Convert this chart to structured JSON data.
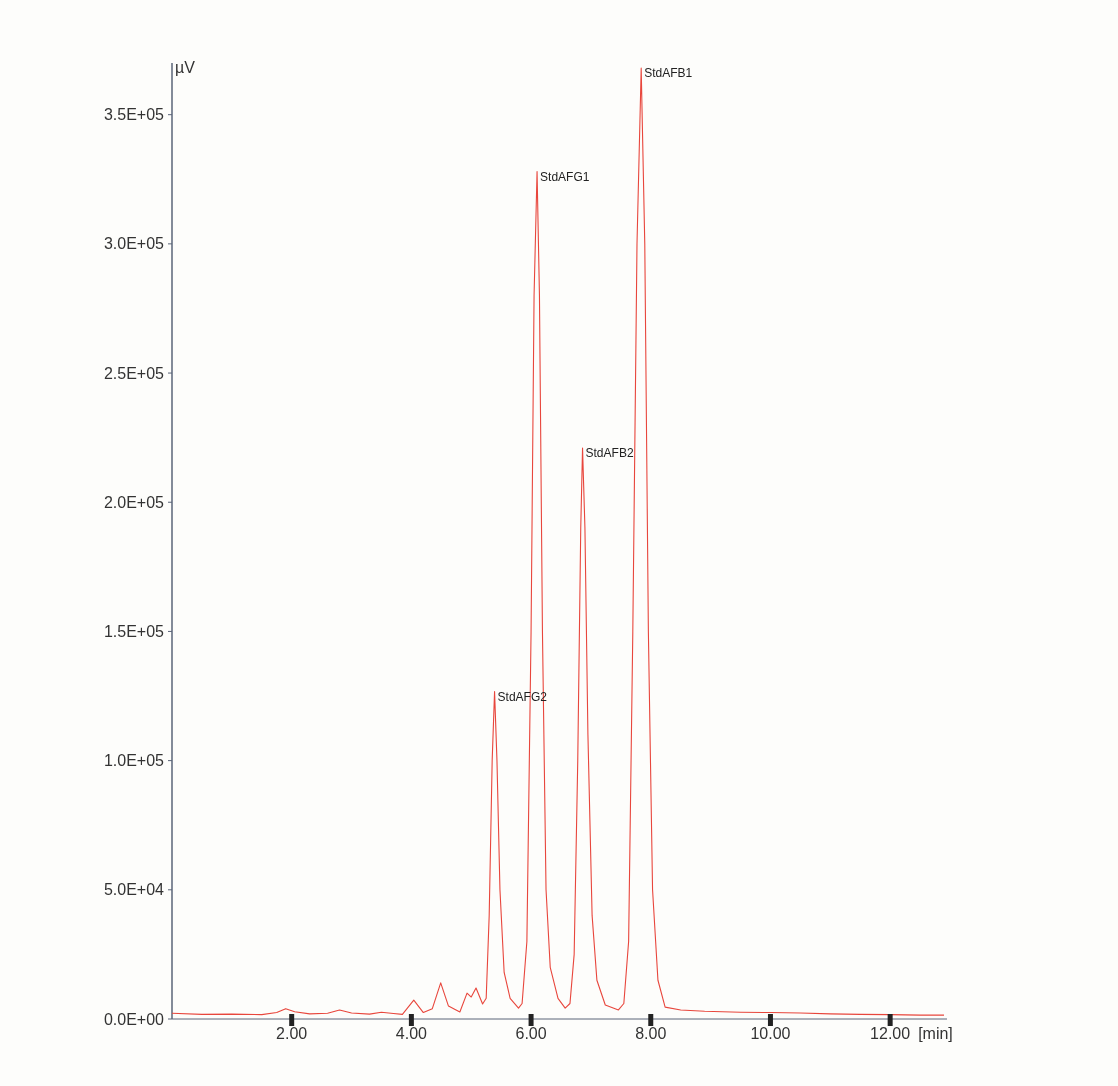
{
  "chart_data": {
    "type": "line",
    "xlabel": "[min]",
    "ylabel": "µV",
    "x": [
      0,
      0.5,
      1.0,
      1.5,
      1.75,
      1.9,
      2.05,
      2.3,
      2.6,
      2.8,
      3.0,
      3.3,
      3.5,
      3.7,
      3.85,
      4.04,
      4.2,
      4.35,
      4.49,
      4.62,
      4.81,
      4.93,
      5.0,
      5.08,
      5.19,
      5.25,
      5.3,
      5.35,
      5.39,
      5.43,
      5.48,
      5.55,
      5.65,
      5.79,
      5.85,
      5.93,
      6.0,
      6.05,
      6.1,
      6.14,
      6.19,
      6.25,
      6.32,
      6.45,
      6.57,
      6.65,
      6.72,
      6.78,
      6.83,
      6.86,
      6.9,
      6.95,
      7.02,
      7.1,
      7.24,
      7.46,
      7.55,
      7.63,
      7.7,
      7.77,
      7.84,
      7.9,
      7.96,
      8.03,
      8.12,
      8.24,
      8.5,
      8.9,
      9.5,
      10.0,
      10.5,
      11.0,
      11.5,
      12.0,
      12.5,
      12.9
    ],
    "series": [
      {
        "color": "#e8463c",
        "values": [
          2200,
          1800,
          1900,
          1700,
          2500,
          4000,
          2800,
          2000,
          2200,
          3500,
          2300,
          1900,
          2600,
          2100,
          1800,
          7300,
          2500,
          4000,
          14000,
          5000,
          2700,
          10000,
          8500,
          12000,
          5800,
          8000,
          40000,
          100000,
          126700,
          100000,
          50000,
          18000,
          8000,
          4200,
          6000,
          30000,
          150000,
          280000,
          328000,
          280000,
          150000,
          50000,
          20000,
          8000,
          4200,
          6000,
          25000,
          100000,
          190000,
          221000,
          190000,
          110000,
          40000,
          15000,
          5400,
          3500,
          6000,
          30000,
          150000,
          300000,
          368000,
          300000,
          150000,
          50000,
          15000,
          4600,
          3500,
          3000,
          2600,
          2500,
          2300,
          2000,
          1800,
          1700,
          1500,
          1500
        ]
      }
    ],
    "xlim": [
      0,
      12.95
    ],
    "ylim": [
      0,
      370000
    ],
    "xticks": [
      {
        "value": 2,
        "label": "2.00"
      },
      {
        "value": 4,
        "label": "4.00"
      },
      {
        "value": 6,
        "label": "6.00"
      },
      {
        "value": 8,
        "label": "8.00"
      },
      {
        "value": 10,
        "label": "10.00"
      },
      {
        "value": 12,
        "label": "12.00"
      }
    ],
    "yticks": [
      {
        "value": 0,
        "label": "0.0E+00"
      },
      {
        "value": 50000,
        "label": "5.0E+04"
      },
      {
        "value": 100000,
        "label": "1.0E+05"
      },
      {
        "value": 150000,
        "label": "1.5E+05"
      },
      {
        "value": 200000,
        "label": "2.0E+05"
      },
      {
        "value": 250000,
        "label": "2.5E+05"
      },
      {
        "value": 300000,
        "label": "3.0E+05"
      },
      {
        "value": 350000,
        "label": "3.5E+05"
      }
    ],
    "annotations": [
      {
        "text": "StdAFG2",
        "x": 5.39,
        "y": 126700
      },
      {
        "text": "StdAFG1",
        "x": 6.1,
        "y": 328000
      },
      {
        "text": "StdAFB2",
        "x": 6.86,
        "y": 221000
      },
      {
        "text": "StdAFB1",
        "x": 7.84,
        "y": 368000
      }
    ],
    "grid": false
  }
}
